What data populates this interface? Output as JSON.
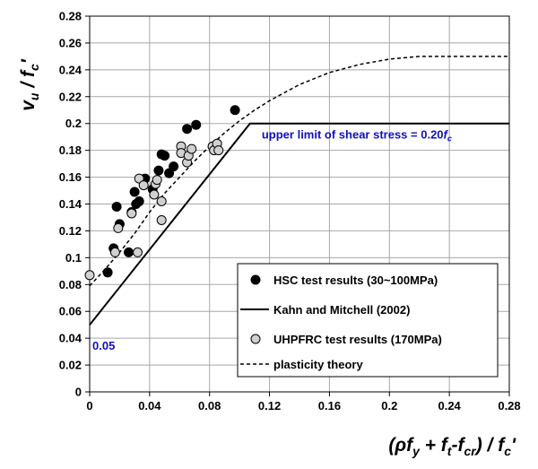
{
  "chart_data": {
    "type": "scatter",
    "xlabel": "(ρf_y + f_t-f_cr) / f_c'",
    "ylabel": "v_u / f_c'",
    "xlim": [
      0,
      0.28
    ],
    "ylim": [
      0,
      0.28
    ],
    "x_ticks": [
      "0",
      "0.04",
      "0.08",
      "0.12",
      "0.16",
      "0.2",
      "0.24",
      "0.28"
    ],
    "y_ticks": [
      "0",
      "0.02",
      "0.04",
      "0.06",
      "0.08",
      "0.1",
      "0.12",
      "0.14",
      "0.16",
      "0.18",
      "0.2",
      "0.22",
      "0.24",
      "0.26",
      "0.28"
    ],
    "grid": true,
    "legend_position": "bottom-right",
    "series": [
      {
        "name": "HSC test results (30~100MPa)",
        "kind": "scatter",
        "marker": "filled-circle",
        "color": "#000000",
        "points": [
          [
            0.012,
            0.089
          ],
          [
            0.016,
            0.107
          ],
          [
            0.018,
            0.138
          ],
          [
            0.02,
            0.125
          ],
          [
            0.026,
            0.104
          ],
          [
            0.028,
            0.134
          ],
          [
            0.03,
            0.149
          ],
          [
            0.031,
            0.14
          ],
          [
            0.033,
            0.142
          ],
          [
            0.037,
            0.159
          ],
          [
            0.042,
            0.151
          ],
          [
            0.046,
            0.165
          ],
          [
            0.048,
            0.177
          ],
          [
            0.05,
            0.176
          ],
          [
            0.053,
            0.163
          ],
          [
            0.056,
            0.168
          ],
          [
            0.065,
            0.196
          ],
          [
            0.071,
            0.199
          ],
          [
            0.097,
            0.21
          ]
        ]
      },
      {
        "name": "Kahn and Mitchell (2002)",
        "kind": "line",
        "style": "solid",
        "color": "#000000",
        "points": [
          [
            0,
            0.05
          ],
          [
            0.107,
            0.2
          ],
          [
            0.28,
            0.2
          ]
        ]
      },
      {
        "name": "UHPFRC test results (170MPa)",
        "kind": "scatter",
        "marker": "hollow-circle",
        "color": "#d0d0d0",
        "points": [
          [
            0,
            0.087
          ],
          [
            0.017,
            0.104
          ],
          [
            0.019,
            0.122
          ],
          [
            0.028,
            0.133
          ],
          [
            0.032,
            0.104
          ],
          [
            0.033,
            0.159
          ],
          [
            0.036,
            0.154
          ],
          [
            0.043,
            0.147
          ],
          [
            0.044,
            0.155
          ],
          [
            0.045,
            0.158
          ],
          [
            0.048,
            0.142
          ],
          [
            0.048,
            0.128
          ],
          [
            0.061,
            0.183
          ],
          [
            0.061,
            0.178
          ],
          [
            0.065,
            0.171
          ],
          [
            0.066,
            0.176
          ],
          [
            0.068,
            0.181
          ],
          [
            0.082,
            0.183
          ],
          [
            0.083,
            0.18
          ],
          [
            0.085,
            0.185
          ],
          [
            0.086,
            0.18
          ]
        ]
      },
      {
        "name": "plasticity theory",
        "kind": "line",
        "style": "dashed",
        "color": "#000000",
        "points": [
          [
            0,
            0.079
          ],
          [
            0.01,
            0.091
          ],
          [
            0.02,
            0.104
          ],
          [
            0.03,
            0.118
          ],
          [
            0.04,
            0.134
          ],
          [
            0.05,
            0.148
          ],
          [
            0.06,
            0.16
          ],
          [
            0.07,
            0.172
          ],
          [
            0.08,
            0.183
          ],
          [
            0.09,
            0.193
          ],
          [
            0.1,
            0.202
          ],
          [
            0.11,
            0.21
          ],
          [
            0.12,
            0.217
          ],
          [
            0.14,
            0.229
          ],
          [
            0.16,
            0.238
          ],
          [
            0.18,
            0.244
          ],
          [
            0.2,
            0.248
          ],
          [
            0.22,
            0.25
          ],
          [
            0.24,
            0.25
          ],
          [
            0.28,
            0.25
          ]
        ]
      }
    ],
    "annotations": [
      {
        "text": "upper limit of shear stress = 0.20",
        "suffix": "f",
        "suffix_sub": "c",
        "x": 0.113,
        "y": 0.2
      },
      {
        "text": "0.05",
        "x": 0.0,
        "y": 0.05
      }
    ]
  }
}
